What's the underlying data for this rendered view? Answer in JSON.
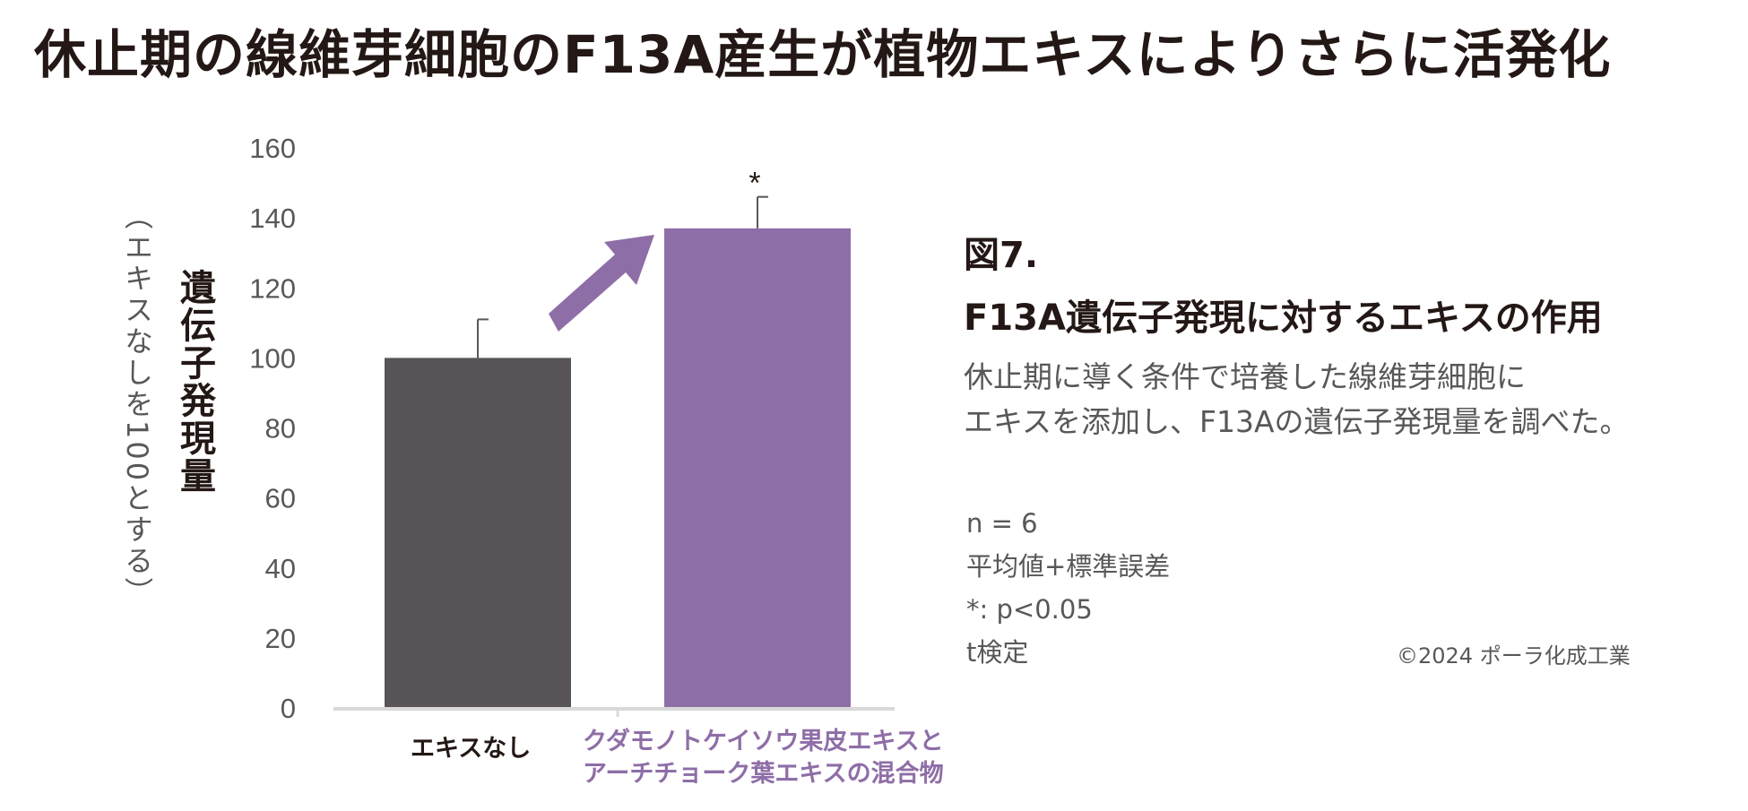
{
  "title": "休止期の線維芽細胞のF13A産生が植物エキスによりさらに活発化",
  "figure": {
    "number": "図7.",
    "title": "F13A遺伝子発現に対するエキスの作用",
    "description_lines": [
      "休止期に導く条件で培養した線維芽細胞に",
      "エキスを添加し、F13Aの遺伝子発現量を調べた。"
    ],
    "stats_lines": [
      "n = 6",
      "平均値+標準誤差",
      "*: p<0.05",
      "t検定"
    ],
    "copyright": "©2024 ポーラ化成工業"
  },
  "chart_data": {
    "type": "bar",
    "categories": [
      "エキスなし",
      "クダモノトケイソウ果皮エキスとアーチチョーク葉エキスの混合物"
    ],
    "category_lines": [
      [
        "エキスなし"
      ],
      [
        "クダモノトケイソウ果皮エキスと",
        "アーチチョーク葉エキスの混合物"
      ]
    ],
    "values": [
      100,
      137
    ],
    "error": [
      11,
      9
    ],
    "significance": [
      "",
      "*"
    ],
    "ylim": [
      0,
      160
    ],
    "yticks": [
      "0",
      "20",
      "40",
      "60",
      "80",
      "100",
      "120",
      "140",
      "160"
    ],
    "ylabel": "遺伝子発現量",
    "ylabel_sub": "（エキスなしを100とする）",
    "grid": false,
    "colors": [
      "#595457",
      "#8e6ea7"
    ],
    "arrow_color": "#8e6ea7",
    "axis_color": "#d9d9d9",
    "error_bar_color": "#595757"
  }
}
